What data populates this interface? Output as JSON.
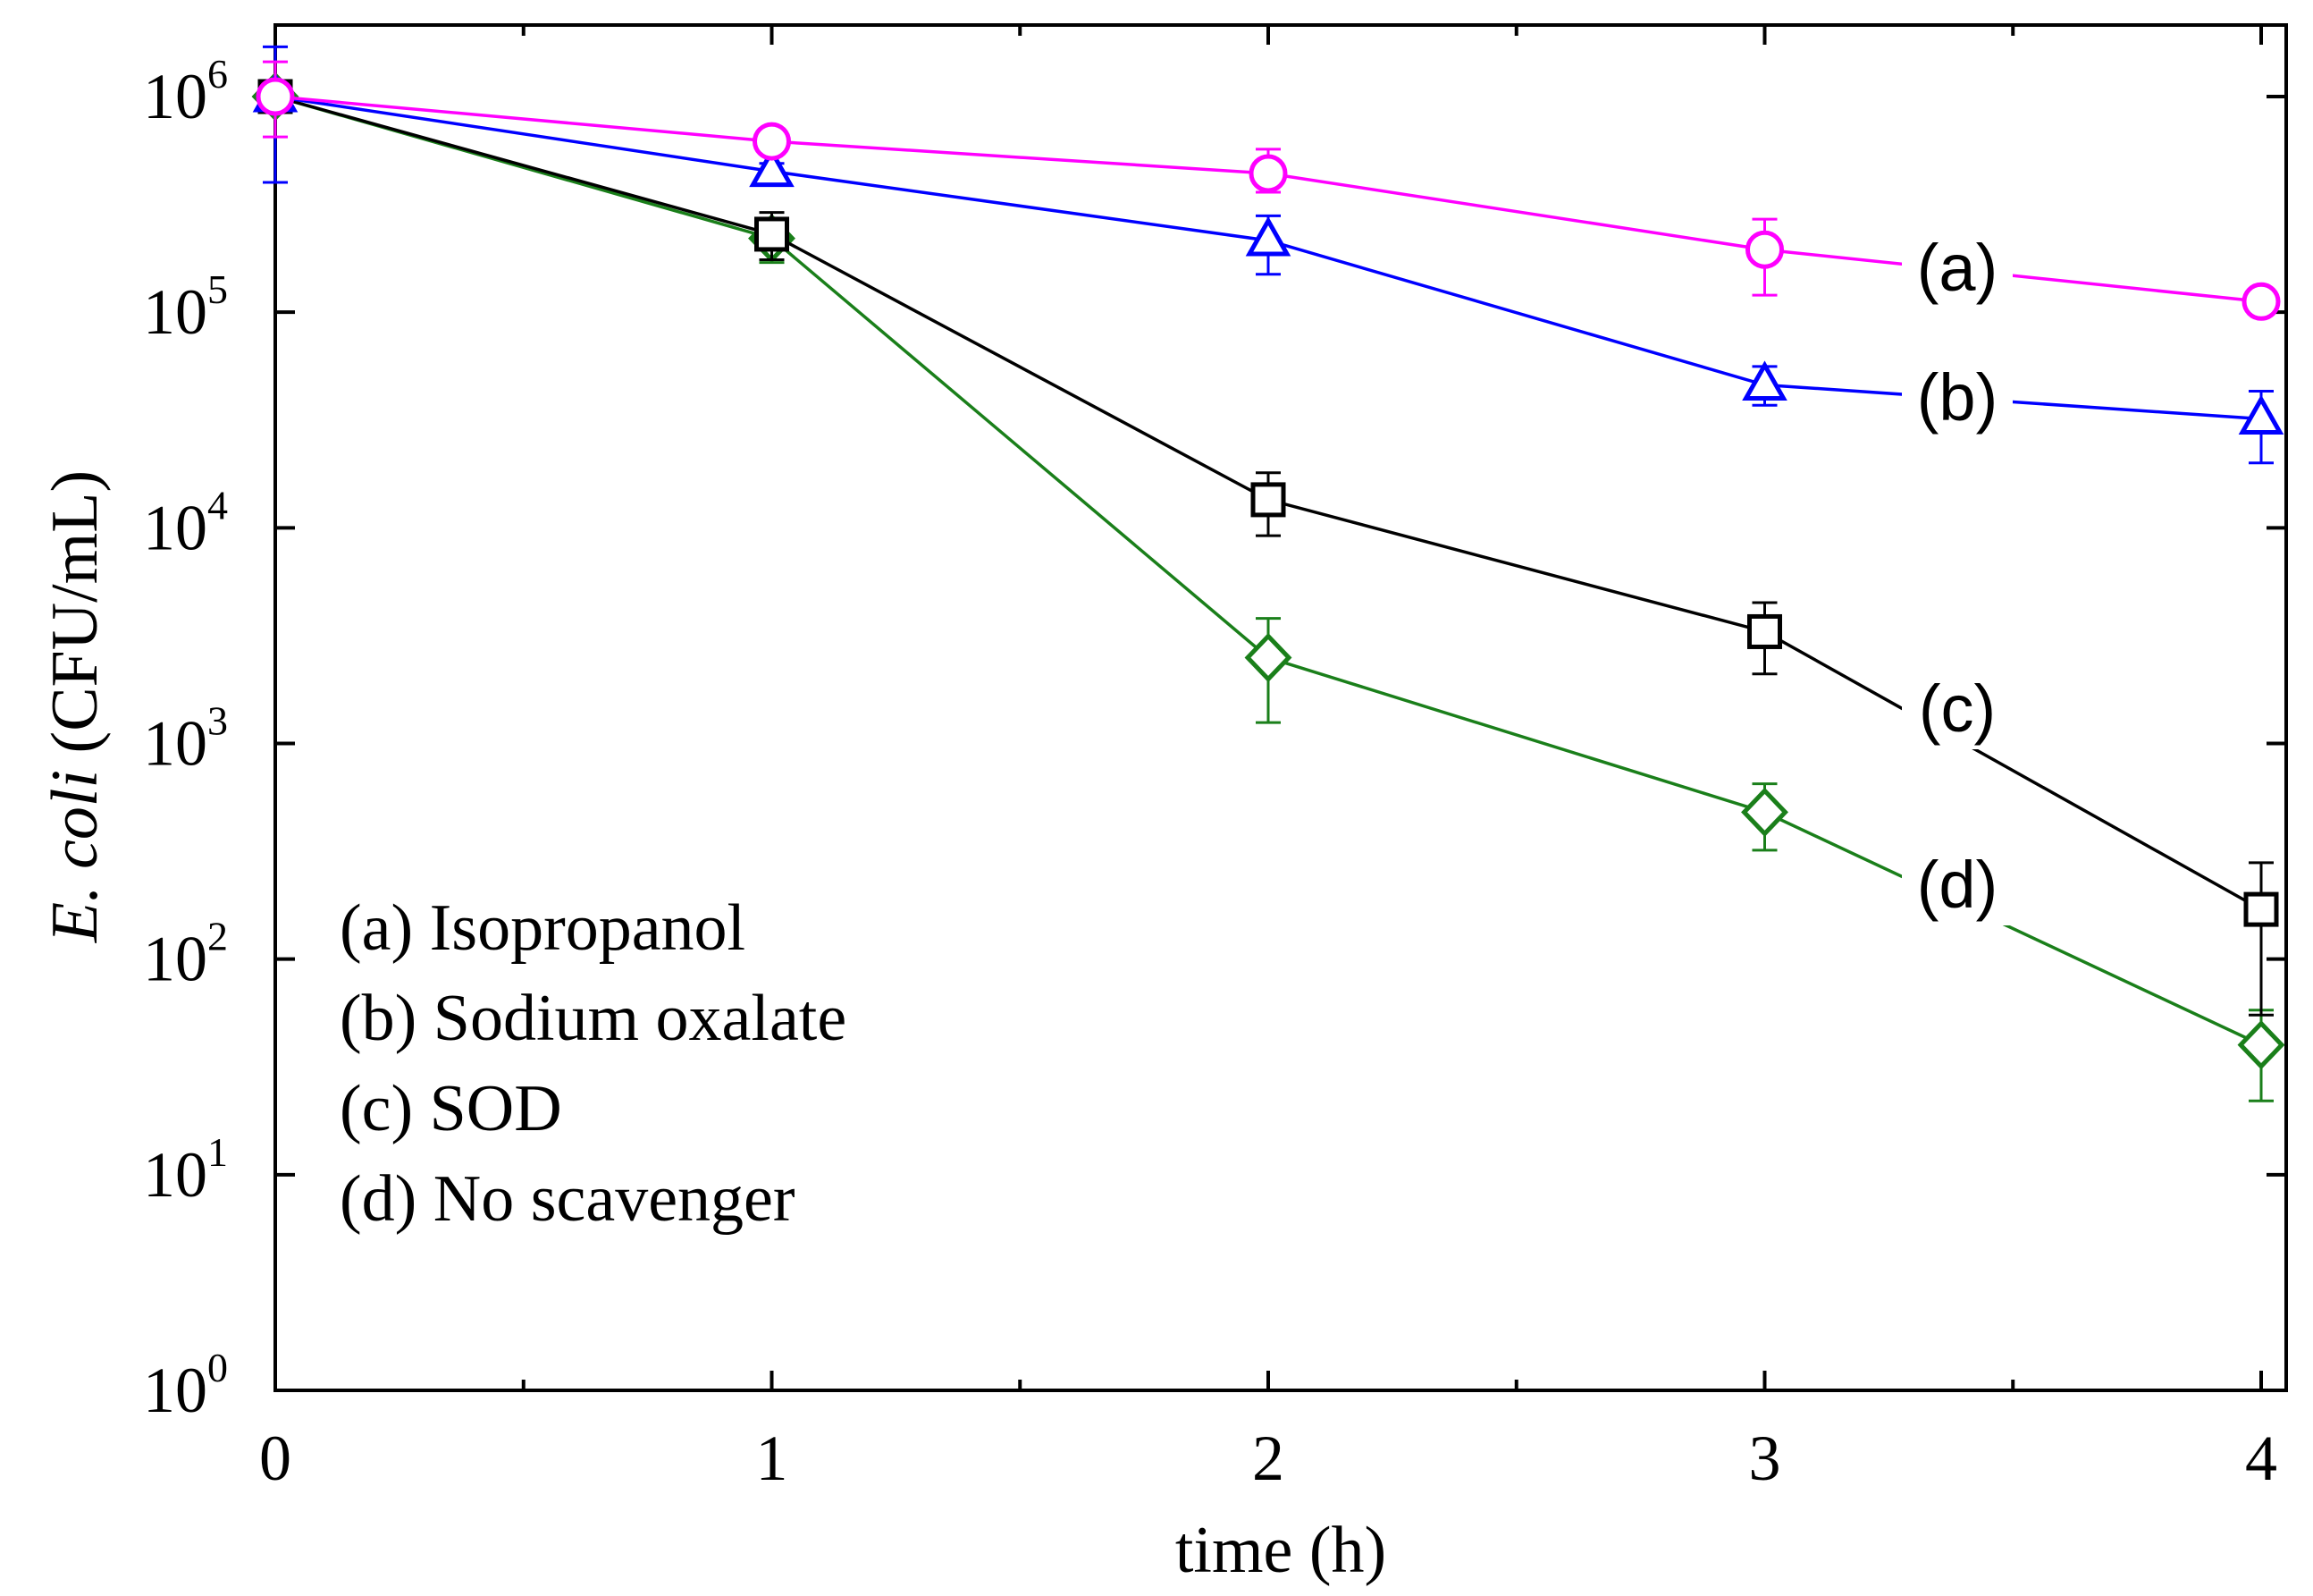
{
  "chart_data": {
    "type": "line",
    "yscale": "log",
    "xlabel": "time (h)",
    "ylabel_italic": "E. coli",
    "ylabel_rest": " (CFU/mL)",
    "xlim": [
      0,
      4
    ],
    "ylim": [
      1,
      1000000
    ],
    "x_ticks": [
      0,
      1,
      2,
      3,
      4
    ],
    "x_tick_labels": [
      "0",
      "1",
      "2",
      "3",
      "4"
    ],
    "x_minor_ticks": [
      0.5,
      1.5,
      2.5,
      3.5
    ],
    "y_ticks": [
      {
        "value": 1,
        "base": "10",
        "exp": "0"
      },
      {
        "value": 10,
        "base": "10",
        "exp": "1"
      },
      {
        "value": 100,
        "base": "10",
        "exp": "2"
      },
      {
        "value": 1000,
        "base": "10",
        "exp": "3"
      },
      {
        "value": 10000,
        "base": "10",
        "exp": "4"
      },
      {
        "value": 100000,
        "base": "10",
        "exp": "5"
      },
      {
        "value": 1000000,
        "base": "10",
        "exp": "6"
      }
    ],
    "legend": [
      "(a) Isopropanol",
      "(b) Sodium oxalate",
      "(c) SOD",
      "(d) No scavenger"
    ],
    "series": [
      {
        "name": "(a) Isopropanol",
        "tag": "(a)",
        "tag_at_x": 3.4,
        "color": "#ff00ff",
        "marker": "circle",
        "x": [
          0,
          1,
          2,
          3,
          4
        ],
        "values": [
          1000000,
          620000,
          440000,
          195000,
          112000
        ],
        "err_low": [
          650000,
          570000,
          360000,
          120000,
          108000
        ],
        "err_high": [
          1450000,
          680000,
          570000,
          270000,
          118000
        ]
      },
      {
        "name": "(b) Sodium oxalate",
        "tag": "(b)",
        "tag_at_x": 3.4,
        "color": "#0000ff",
        "marker": "triangle",
        "x": [
          0,
          1,
          2,
          3,
          4
        ],
        "values": [
          1000000,
          450000,
          215000,
          46000,
          32000
        ],
        "err_low": [
          400000,
          420000,
          150000,
          37000,
          20000
        ],
        "err_high": [
          1700000,
          490000,
          280000,
          56000,
          43000
        ]
      },
      {
        "name": "(c) SOD",
        "tag": "(c)",
        "tag_at_x": 3.4,
        "color": "#000000",
        "marker": "square",
        "x": [
          0,
          1,
          2,
          3,
          4
        ],
        "values": [
          1000000,
          230000,
          13500,
          3300,
          170
        ],
        "err_low": [
          1000000,
          175000,
          9200,
          2100,
          55
        ],
        "err_high": [
          1000000,
          290000,
          18000,
          4500,
          280
        ]
      },
      {
        "name": "(d) No scavenger",
        "tag": "(d)",
        "tag_at_x": 3.4,
        "color": "#1a7f1a",
        "marker": "diamond",
        "x": [
          0,
          1,
          2,
          3,
          4
        ],
        "values": [
          1000000,
          220000,
          2500,
          480,
          40
        ],
        "err_low": [
          1000000,
          170000,
          1250,
          320,
          22
        ],
        "err_high": [
          1000000,
          270000,
          3800,
          650,
          58
        ]
      }
    ]
  }
}
